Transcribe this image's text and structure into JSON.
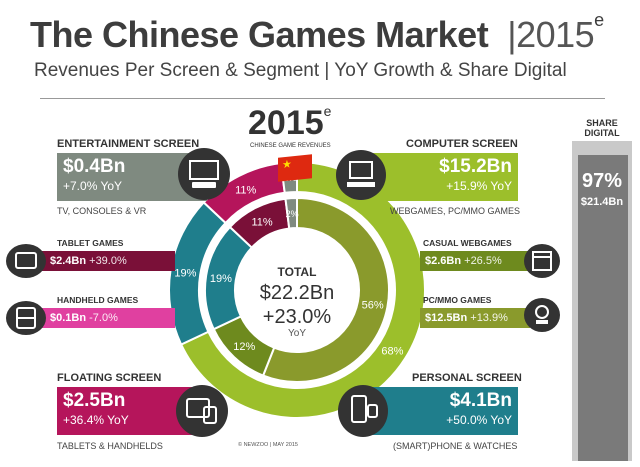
{
  "header": {
    "title": "The Chinese Games Market",
    "title_year": "2015",
    "title_sup": "e",
    "subtitle": "Revenues Per Screen & Segment | YoY Growth & Share Digital"
  },
  "center": {
    "year": "2015",
    "year_sup": "e",
    "caption": "CHINESE GAME REVENUES",
    "total_label": "TOTAL",
    "total_value": "$22.2Bn",
    "total_growth": "+23.0%",
    "total_growth_label": "YoY"
  },
  "screens": {
    "entertainment": {
      "label": "ENTERTAINMENT SCREEN",
      "value": "$0.4Bn",
      "yoy": "+7.0% YoY",
      "sub": "TV, CONSOLES & VR",
      "icon": "tv-console-icon"
    },
    "computer": {
      "label": "COMPUTER SCREEN",
      "value": "$15.2Bn",
      "yoy": "+15.9% YoY",
      "sub": "WEBGAMES, PC/MMO GAMES",
      "icon": "desktop-computer-icon"
    },
    "floating": {
      "label": "FLOATING SCREEN",
      "value": "$2.5Bn",
      "yoy": "+36.4% YoY",
      "sub": "TABLETS & HANDHELDS",
      "icon": "tablet-handheld-icon"
    },
    "personal": {
      "label": "PERSONAL SCREEN",
      "value": "$4.1Bn",
      "yoy": "+50.0% YoY",
      "sub": "(SMART)PHONE & WATCHES",
      "icon": "smartphone-watch-icon"
    }
  },
  "segments": {
    "tablet": {
      "label": "TABLET GAMES",
      "value": "$2.4Bn",
      "yoy": "+39.0%",
      "icon": "tablet-icon"
    },
    "handheld": {
      "label": "HANDHELD GAMES",
      "value": "$0.1Bn",
      "yoy": "-7.0%",
      "icon": "handheld-console-icon"
    },
    "casual": {
      "label": "CASUAL WEBGAMES",
      "value": "$2.6Bn",
      "yoy": "+26.5%",
      "icon": "browser-window-icon"
    },
    "pcmmo": {
      "label": "PC/MMO GAMES",
      "value": "$12.5Bn",
      "yoy": "+13.9%",
      "icon": "pc-mmo-icon"
    }
  },
  "share": {
    "label_1": "SHARE",
    "label_2": "DIGITAL",
    "pct": "97%",
    "value": "$21.4Bn"
  },
  "credit": "© NEWZOO | MAY 2015",
  "colors": {
    "entertainment": "#7f8a80",
    "computer": "#9cbf2b",
    "computer_dark": "#6e8a1e",
    "floating": "#b5155b",
    "floating_dark": "#7a1038",
    "personal": "#1f7e8c",
    "handheld": "#e040a0",
    "pcmmo": "#8a9a2c",
    "share_outer": "#c9c9c9",
    "share_inner": "#7a7a7a",
    "flag": "#de2910"
  },
  "chart_data": {
    "type": "pie",
    "rings": [
      {
        "name": "screens",
        "labels": [
          "Computer Screen",
          "Personal Screen",
          "Floating Screen",
          "Entertainment Screen"
        ],
        "values": [
          68,
          19,
          11,
          2
        ],
        "display": [
          "68%",
          "19%",
          "11%",
          "2%"
        ]
      },
      {
        "name": "segments",
        "labels": [
          "PC/MMO Games",
          "Casual Webgames",
          "Personal Screen",
          "Floating Screen",
          "Entertainment Screen"
        ],
        "values": [
          56,
          12,
          19,
          11,
          2
        ],
        "display": [
          "56%",
          "12%",
          "19%",
          "11%",
          "2%"
        ]
      }
    ]
  }
}
